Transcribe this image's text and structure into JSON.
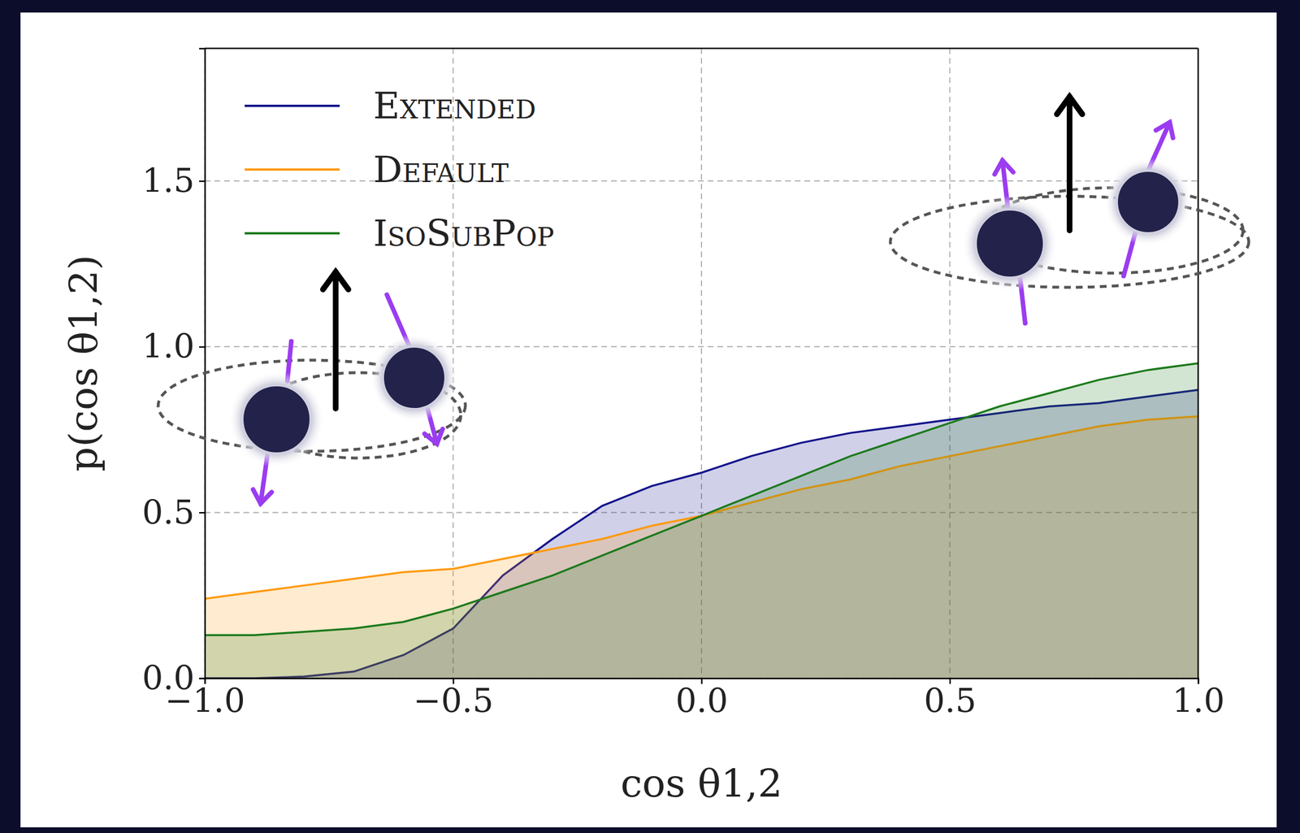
{
  "chart_data": {
    "type": "area",
    "xlabel": "cos θ1,2",
    "ylabel": "p(cos θ1,2)",
    "x": [
      -1.0,
      -0.9,
      -0.8,
      -0.7,
      -0.6,
      -0.5,
      -0.4,
      -0.3,
      -0.2,
      -0.1,
      0.0,
      0.1,
      0.2,
      0.3,
      0.4,
      0.5,
      0.6,
      0.7,
      0.8,
      0.9,
      1.0
    ],
    "series": [
      {
        "name": "Extended",
        "color": "#14148c",
        "values": [
          0.0,
          0.0,
          0.005,
          0.02,
          0.07,
          0.15,
          0.31,
          0.42,
          0.52,
          0.58,
          0.62,
          0.67,
          0.71,
          0.74,
          0.76,
          0.78,
          0.8,
          0.82,
          0.83,
          0.85,
          0.87
        ]
      },
      {
        "name": "Default",
        "color": "#ff9a10",
        "values": [
          0.24,
          0.26,
          0.28,
          0.3,
          0.32,
          0.33,
          0.36,
          0.39,
          0.42,
          0.46,
          0.49,
          0.53,
          0.57,
          0.6,
          0.64,
          0.67,
          0.7,
          0.73,
          0.76,
          0.78,
          0.79
        ]
      },
      {
        "name": "IsoSubPop",
        "color": "#1c7a1c",
        "values": [
          0.13,
          0.13,
          0.14,
          0.15,
          0.17,
          0.21,
          0.26,
          0.31,
          0.37,
          0.43,
          0.49,
          0.55,
          0.61,
          0.67,
          0.72,
          0.77,
          0.82,
          0.86,
          0.9,
          0.93,
          0.95
        ]
      }
    ],
    "xlim": [
      -1.0,
      1.0
    ],
    "xticks": [
      {
        "value": -1.0,
        "label": "−1.0"
      },
      {
        "value": -0.5,
        "label": "−0.5"
      },
      {
        "value": 0.0,
        "label": "0.0"
      },
      {
        "value": 0.5,
        "label": "0.5"
      },
      {
        "value": 1.0,
        "label": "1.0"
      }
    ],
    "ylim": [
      0.0,
      1.9
    ],
    "yticks": [
      {
        "value": 0.0,
        "label": "0.0"
      },
      {
        "value": 0.5,
        "label": "0.5"
      },
      {
        "value": 1.0,
        "label": "1.0"
      },
      {
        "value": 1.5,
        "label": "1.5"
      }
    ],
    "grid": true,
    "legend": "upper left"
  }
}
